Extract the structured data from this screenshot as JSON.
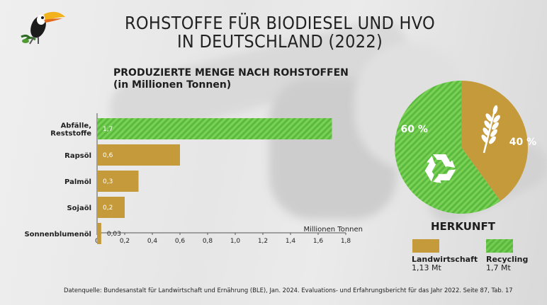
{
  "title_line1": "ROHSTOFFE FÜR BIODIESEL UND HVO",
  "title_line2": "IN DEUTSCHLAND (2022)",
  "subtitle_line1": "PRODUZIERTE MENGE NACH ROHSTOFFEN",
  "subtitle_line2": "(in Millionen Tonnen)",
  "colors": {
    "landwirtschaft": "#c49a3a",
    "recycling": "#5aba3f",
    "recycling_stripe": "#76cc52",
    "text": "#1e1e1e"
  },
  "chart_data": [
    {
      "type": "bar",
      "orientation": "horizontal",
      "categories": [
        "Abfälle,\nReststoffe",
        "Rapsöl",
        "Palmöl",
        "Sojaöl",
        "Sonnenblumenöl"
      ],
      "values": [
        1.7,
        0.6,
        0.3,
        0.2,
        0.03
      ],
      "value_labels": [
        "1,7",
        "0,6",
        "0,3",
        "0,2",
        "0,03"
      ],
      "category_group": [
        "Recycling",
        "Landwirtschaft",
        "Landwirtschaft",
        "Landwirtschaft",
        "Landwirtschaft"
      ],
      "xlabel": "Millionen Tonnen",
      "xlim": [
        0,
        1.8
      ],
      "xticks": [
        0,
        0.2,
        0.4,
        0.6,
        0.8,
        1.0,
        1.2,
        1.4,
        1.6,
        1.8
      ],
      "xtick_labels": [
        "0",
        "0,2",
        "0,4",
        "0,6",
        "0,8",
        "1,0",
        "1,2",
        "1,4",
        "1,6",
        "1,8"
      ],
      "grid": false
    },
    {
      "type": "pie",
      "title": "HERKUNFT",
      "slices": [
        {
          "name": "Landwirtschaft",
          "value": 40,
          "label": "40 %",
          "amount": "1,13 Mt",
          "icon": "wheat-icon"
        },
        {
          "name": "Recycling",
          "value": 60,
          "label": "60 %",
          "amount": "1,7 Mt",
          "icon": "recycle-icon"
        }
      ]
    }
  ],
  "herkunft": {
    "title": "HERKUNFT",
    "landwirtschaft_name": "Landwirtschaft",
    "landwirtschaft_value": "1,13 Mt",
    "recycling_name": "Recycling",
    "recycling_value": "1,7 Mt"
  },
  "icons": {
    "logo": "toucan-icon",
    "agri": "wheat-icon",
    "recycle": "recycle-icon"
  },
  "source": "Datenquelle: Bundesanstalt für Landwirtschaft und Ernährung (BLE), Jan. 2024. Evaluations- und Erfahrungsbericht für das Jahr 2022. Seite 87, Tab. 17"
}
